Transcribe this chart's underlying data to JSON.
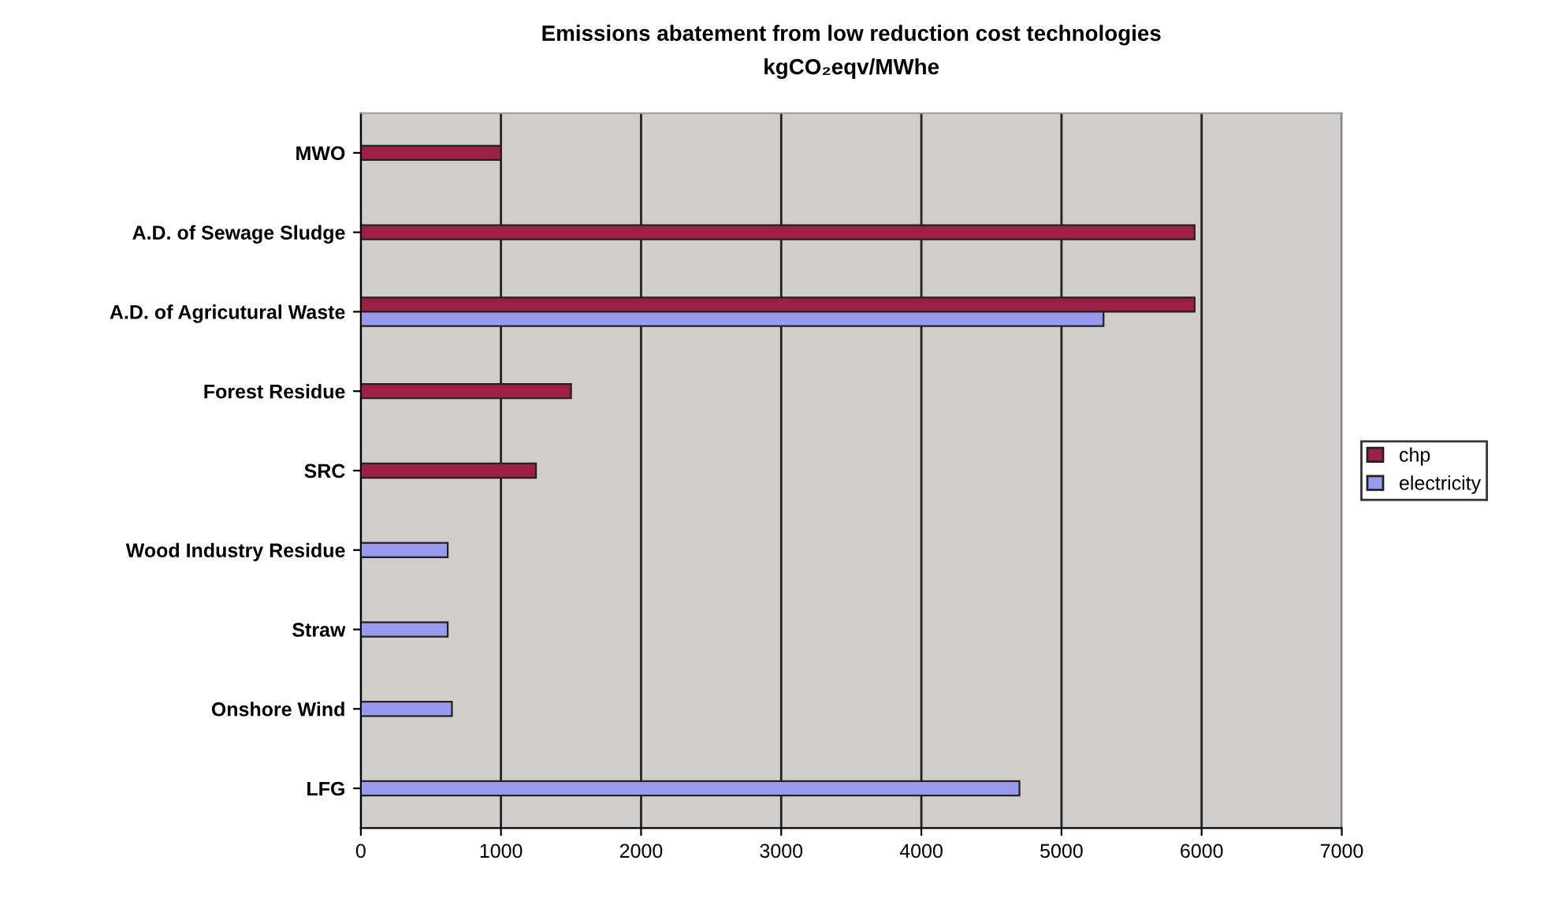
{
  "chart_data": {
    "type": "bar",
    "orientation": "horizontal",
    "title": "Emissions abatement from low reduction cost technologies",
    "subtitle": "kgCO₂eqv/MWhe",
    "categories": [
      "MWO",
      "A.D. of Sewage Sludge",
      "A.D. of Agricutural Waste",
      "Forest Residue",
      "SRC",
      "Wood Industry Residue",
      "Straw",
      "Onshore Wind",
      "LFG"
    ],
    "series": [
      {
        "name": "chp",
        "color": "#9c1f45",
        "values": [
          1000,
          5950,
          5950,
          1500,
          1250,
          null,
          null,
          null,
          null
        ]
      },
      {
        "name": "electricity",
        "color": "#9999ee",
        "values": [
          null,
          null,
          5300,
          null,
          null,
          620,
          620,
          650,
          4700
        ]
      }
    ],
    "xlim": [
      0,
      7000
    ],
    "xticks": [
      0,
      1000,
      2000,
      3000,
      4000,
      5000,
      6000,
      7000
    ],
    "grid": "x",
    "legend": "right"
  }
}
